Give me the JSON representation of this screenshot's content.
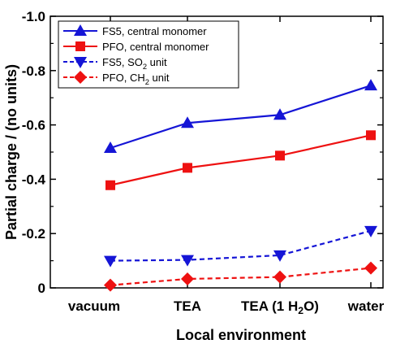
{
  "chart_data": {
    "type": "line",
    "xlabel": "Local environment",
    "ylabel": "Partial charge / (no units)",
    "ylim": [
      0,
      -1.0
    ],
    "yticks": [
      0,
      -0.2,
      -0.4,
      -0.6,
      -0.8,
      -1.0
    ],
    "ytick_labels": [
      "0",
      "-0.2",
      "-0.4",
      "-0.6",
      "-0.8",
      "-1.0"
    ],
    "categories": [
      "vacuum",
      "TEA",
      "TEA (1 H2O)",
      "water"
    ],
    "category_labels": [
      {
        "main": "vacuum",
        "sub": "",
        "tail": ""
      },
      {
        "main": "TEA",
        "sub": "",
        "tail": ""
      },
      {
        "main": "TEA (1 H",
        "sub": "2",
        "tail": "O)"
      },
      {
        "main": "water",
        "sub": "",
        "tail": ""
      }
    ],
    "legend_position": "top-left",
    "grid": false,
    "series": [
      {
        "name": "FS5, central monomer",
        "legend": {
          "main": "FS5, central monomer",
          "sub": "",
          "tail": ""
        },
        "values": [
          -0.515,
          -0.607,
          -0.637,
          -0.745
        ],
        "color": "#1515d6",
        "marker": "triangle-up",
        "dash": "solid"
      },
      {
        "name": "PFO, central monomer",
        "legend": {
          "main": "PFO, central monomer",
          "sub": "",
          "tail": ""
        },
        "values": [
          -0.378,
          -0.442,
          -0.487,
          -0.562
        ],
        "color": "#ee1111",
        "marker": "square",
        "dash": "solid"
      },
      {
        "name": "FS5, SO2 unit",
        "legend": {
          "main": "FS5, SO",
          "sub": "2",
          "tail": " unit"
        },
        "values": [
          -0.1,
          -0.103,
          -0.12,
          -0.21
        ],
        "color": "#1515d6",
        "marker": "triangle-down",
        "dash": "dashed"
      },
      {
        "name": "PFO, CH2 unit",
        "legend": {
          "main": "PFO, CH",
          "sub": "2",
          "tail": " unit"
        },
        "values": [
          -0.01,
          -0.033,
          -0.04,
          -0.073
        ],
        "color": "#ee1111",
        "marker": "diamond",
        "dash": "dashed"
      }
    ]
  }
}
